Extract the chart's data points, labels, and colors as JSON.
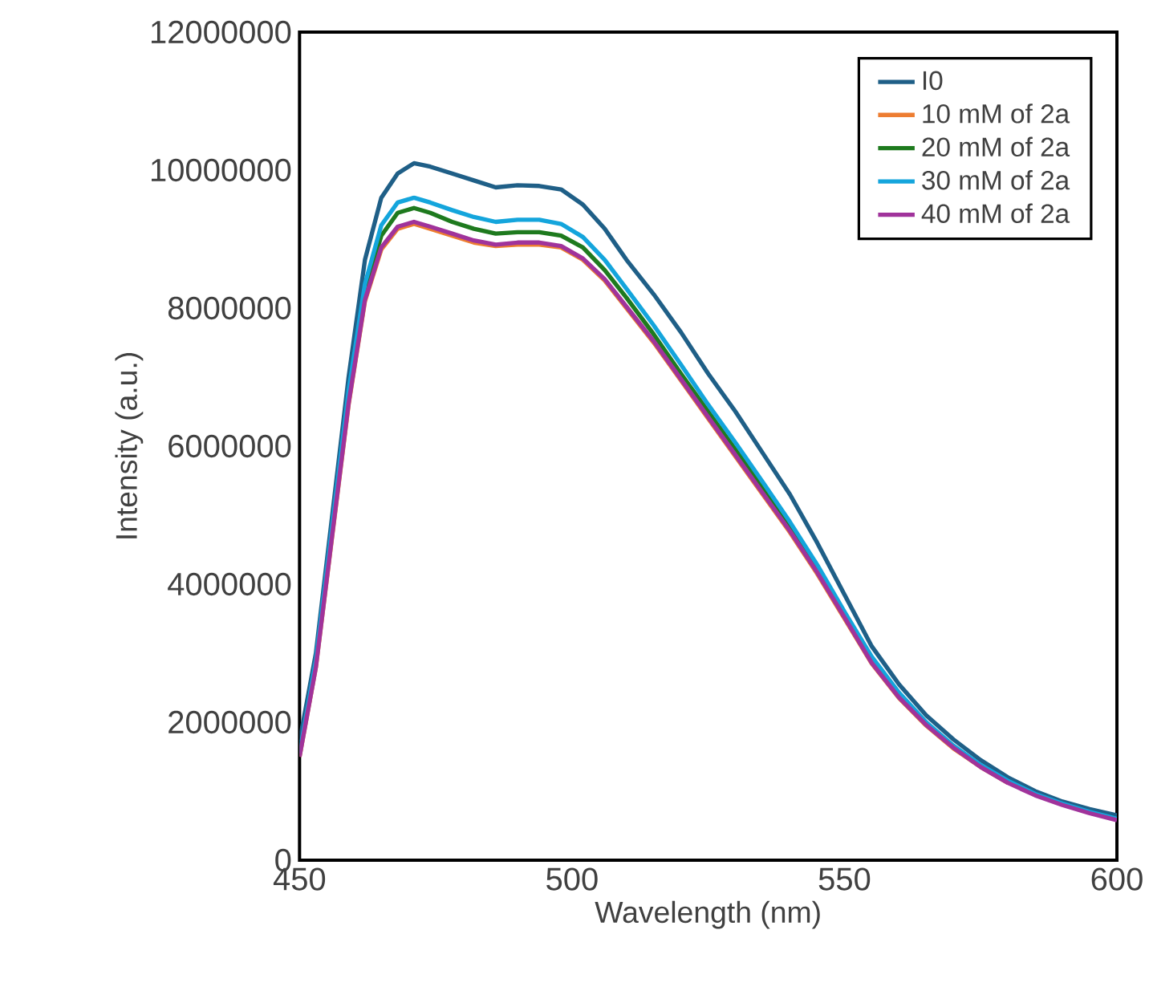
{
  "chart_data": {
    "type": "line",
    "xlabel": "Wavelength (nm)",
    "ylabel": "Intensity (a.u.)",
    "x": [
      450,
      453,
      456,
      459,
      462,
      465,
      468,
      471,
      474,
      478,
      482,
      486,
      490,
      494,
      498,
      502,
      506,
      510,
      515,
      520,
      525,
      530,
      535,
      540,
      545,
      550,
      555,
      560,
      565,
      570,
      575,
      580,
      585,
      590,
      595,
      600
    ],
    "series": [
      {
        "name": "I0",
        "color": "#1f5f87",
        "values": [
          1720000.0,
          3000000.0,
          5000000.0,
          7000000.0,
          8700000.0,
          9600000.0,
          9950000.0,
          10100000.0,
          10050000.0,
          9950000.0,
          9850000.0,
          9750000.0,
          9780000.0,
          9770000.0,
          9720000.0,
          9500000.0,
          9150000.0,
          8700000.0,
          8200000.0,
          7650000.0,
          7050000.0,
          6500000.0,
          5900000.0,
          5300000.0,
          4600000.0,
          3850000.0,
          3100000.0,
          2550000.0,
          2100000.0,
          1750000.0,
          1450000.0,
          1200000.0,
          1000000.0,
          850000.0,
          740000.0,
          650000.0
        ]
      },
      {
        "name": "10 mM of 2a",
        "color": "#ed7d31",
        "values": [
          1500000.0,
          2800000.0,
          4700000.0,
          6600000.0,
          8100000.0,
          8850000.0,
          9150000.0,
          9220000.0,
          9150000.0,
          9050000.0,
          8950000.0,
          8900000.0,
          8920000.0,
          8920000.0,
          8880000.0,
          8700000.0,
          8400000.0,
          8000000.0,
          7500000.0,
          6950000.0,
          6400000.0,
          5850000.0,
          5300000.0,
          4750000.0,
          4150000.0,
          3500000.0,
          2850000.0,
          2350000.0,
          1950000.0,
          1620000.0,
          1350000.0,
          1120000.0,
          null,
          null,
          null,
          null
        ]
      },
      {
        "name": "20 mM of 2a",
        "color": "#1e7a1e",
        "values": [
          null,
          null,
          null,
          6700000.0,
          8250000.0,
          9050000.0,
          9380000.0,
          9450000.0,
          9380000.0,
          9250000.0,
          9150000.0,
          9080000.0,
          9100000.0,
          9100000.0,
          9050000.0,
          8880000.0,
          8550000.0,
          8150000.0,
          7620000.0,
          7050000.0,
          6500000.0,
          5950000.0,
          5400000.0,
          4830000.0,
          4220000.0,
          null,
          null,
          null,
          null,
          null,
          null,
          null,
          null,
          null,
          null,
          null
        ]
      },
      {
        "name": "30 mM of 2a",
        "color": "#14a5dc",
        "values": [
          1550000.0,
          2900000.0,
          4850000.0,
          6800000.0,
          8350000.0,
          9200000.0,
          9530000.0,
          9600000.0,
          9530000.0,
          9420000.0,
          9320000.0,
          9250000.0,
          9280000.0,
          9280000.0,
          9220000.0,
          9030000.0,
          8700000.0,
          8280000.0,
          7750000.0,
          7180000.0,
          6600000.0,
          6050000.0,
          5480000.0,
          4900000.0,
          4280000.0,
          3600000.0,
          2950000.0,
          2430000.0,
          2000000.0,
          1660000.0,
          1380000.0,
          1150000.0,
          960000.0,
          820000.0,
          700000.0,
          600000.0
        ]
      },
      {
        "name": "40 mM of 2a",
        "color": "#a0339b",
        "values": [
          1500000.0,
          2800000.0,
          4720000.0,
          6620000.0,
          8120000.0,
          8880000.0,
          9180000.0,
          9250000.0,
          9180000.0,
          9080000.0,
          8980000.0,
          8920000.0,
          8950000.0,
          8950000.0,
          8900000.0,
          8720000.0,
          8420000.0,
          8020000.0,
          7520000.0,
          6970000.0,
          6420000.0,
          5870000.0,
          5320000.0,
          4770000.0,
          4170000.0,
          3520000.0,
          2860000.0,
          2360000.0,
          1960000.0,
          1630000.0,
          1350000.0,
          1120000.0,
          940000.0,
          800000.0,
          680000.0,
          580000.0
        ]
      }
    ],
    "xlim": [
      450,
      600
    ],
    "xticks": [
      450,
      500,
      550,
      600
    ],
    "ylim": [
      0,
      12000000
    ],
    "yticks": [
      0,
      2000000,
      4000000,
      6000000,
      8000000,
      10000000,
      12000000
    ],
    "legend": "top right",
    "line_style": "solid",
    "grid": false
  }
}
